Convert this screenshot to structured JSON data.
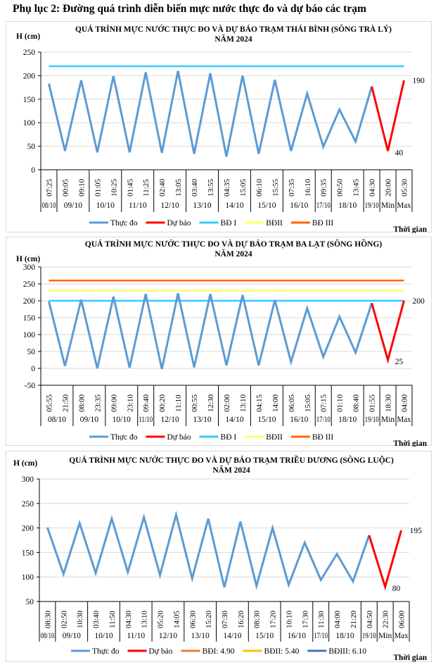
{
  "page_title": "Phụ lục 2: Đường quá trình diễn biến mực nước thực đo và dự báo các trạm",
  "x_axis_label": "Thời gian",
  "chart_data": [
    {
      "type": "line",
      "title": [
        "QUÁ TRÌNH MỰC NƯỚC THỰC ĐO VÀ DỰ BÁO TRẠM THÁI BÌNH (SÔNG TRÀ LÝ)",
        "NĂM 2024"
      ],
      "ylabel": "H (cm)",
      "xlabel": "Thời gian",
      "ylim": [
        0,
        250
      ],
      "yticks": [
        0,
        50,
        100,
        150,
        200,
        250
      ],
      "grid": true,
      "legend_position": "bottom",
      "categories": [
        "07:25",
        "00:05",
        "09:10",
        "01:05",
        "10:25",
        "01:45",
        "11:25",
        "02:40",
        "13:05",
        "03:40",
        "13:55",
        "04:35",
        "15:05",
        "06:10",
        "15:55",
        "07:35",
        "16:10",
        "09:35",
        "00:50",
        "13:45",
        "04:30",
        "20:00",
        "05:30"
      ],
      "date_groups": [
        [
          "08/10",
          1
        ],
        [
          "09/10",
          2
        ],
        [
          "10/10",
          2
        ],
        [
          "11/10",
          2
        ],
        [
          "12/10",
          2
        ],
        [
          "13/10",
          2
        ],
        [
          "14/10",
          2
        ],
        [
          "15/10",
          2
        ],
        [
          "16/10",
          2
        ],
        [
          "17/10",
          1
        ],
        [
          "18/10",
          2
        ],
        [
          "19/10",
          1
        ],
        [
          "Min",
          1
        ],
        [
          "Max",
          1
        ]
      ],
      "series": [
        {
          "name": "Thực đo",
          "color": "#5B9BD5",
          "values": [
            183,
            40,
            190,
            37,
            199,
            37,
            207,
            36,
            210,
            34,
            205,
            28,
            200,
            34,
            191,
            40,
            162,
            49,
            128,
            60,
            177,
            null,
            null
          ]
        },
        {
          "name": "Dự báo",
          "color": "#FF0000",
          "values": [
            null,
            null,
            null,
            null,
            null,
            null,
            null,
            null,
            null,
            null,
            null,
            null,
            null,
            null,
            null,
            null,
            null,
            null,
            null,
            null,
            177,
            40,
            190
          ]
        }
      ],
      "levels": [
        {
          "name": "BĐ I",
          "color": "#33CCFF",
          "value": 220
        },
        {
          "name": "BĐII",
          "color": "#FFFF66",
          "value": null
        },
        {
          "name": "BĐ III",
          "color": "#FF6600",
          "value": null
        }
      ],
      "annotations": [
        {
          "text": "190",
          "index": 22,
          "value": 190
        },
        {
          "text": "40",
          "index": 21,
          "value": 40
        }
      ]
    },
    {
      "type": "line",
      "title": [
        "QUÁ TRÌNH MỰC NƯỚC THỰC ĐO VÀ DỰ BÁO TRẠM BA LẠT (SÔNG HỒNG)",
        "NĂM 2024"
      ],
      "ylabel": "H (cm)",
      "xlabel": "Thời gian",
      "ylim": [
        -50,
        300
      ],
      "yticks": [
        -50,
        0,
        50,
        100,
        150,
        200,
        250,
        300
      ],
      "grid": true,
      "legend_position": "bottom",
      "categories": [
        "05:55",
        "21:50",
        "08:00",
        "23:35",
        "09:00",
        "23:10",
        "09:40",
        "00:20",
        "11:10",
        "00:55",
        "12:30",
        "02:00",
        "13:10",
        "04:15",
        "14:00",
        "06:05",
        "15:05",
        "07:15",
        "01:10",
        "08:40",
        "01:55",
        "18:30",
        "04:00"
      ],
      "date_groups": [
        [
          "08/10",
          2
        ],
        [
          "09/10",
          2
        ],
        [
          "10/10",
          2
        ],
        [
          "11/10",
          1
        ],
        [
          "12/10",
          2
        ],
        [
          "13/10",
          2
        ],
        [
          "14/10",
          2
        ],
        [
          "15/10",
          2
        ],
        [
          "16/10",
          2
        ],
        [
          "17/10",
          1
        ],
        [
          "18/10",
          2
        ],
        [
          "19/10",
          1
        ],
        [
          "Min",
          1
        ],
        [
          "Max",
          1
        ]
      ],
      "series": [
        {
          "name": "Thực đo",
          "color": "#5B9BD5",
          "values": [
            198,
            7,
            203,
            0,
            212,
            2,
            220,
            -2,
            222,
            3,
            220,
            9,
            217,
            9,
            202,
            19,
            178,
            34,
            153,
            47,
            193,
            null,
            null
          ]
        },
        {
          "name": "Dự báo",
          "color": "#FF0000",
          "values": [
            null,
            null,
            null,
            null,
            null,
            null,
            null,
            null,
            null,
            null,
            null,
            null,
            null,
            null,
            null,
            null,
            null,
            null,
            null,
            null,
            193,
            25,
            200
          ]
        }
      ],
      "levels": [
        {
          "name": "BĐ I",
          "color": "#33CCFF",
          "value": 200
        },
        {
          "name": "BĐII",
          "color": "#FFFF66",
          "value": 230
        },
        {
          "name": "BĐ III",
          "color": "#FF6600",
          "value": 260
        }
      ],
      "annotations": [
        {
          "text": "200",
          "index": 22,
          "value": 200
        },
        {
          "text": "25",
          "index": 21,
          "value": 25
        }
      ]
    },
    {
      "type": "line",
      "title": [
        "QUÁ TRÌNH MỰC NƯỚC THỰC ĐO VÀ DỰ BÁO TRẠM TRIỀU DƯƠNG (SÔNG LUỘC)",
        "NĂM 2024"
      ],
      "ylabel": "H (cm)",
      "xlabel": "Thời gian",
      "ylim": [
        50,
        300
      ],
      "yticks": [
        50,
        100,
        150,
        200,
        250,
        300
      ],
      "grid": true,
      "legend_position": "bottom",
      "categories": [
        "08:30",
        "02:50",
        "10:30",
        "03:40",
        "11:50",
        "04:30",
        "13:10",
        "05:20",
        "14:05",
        "06:30",
        "15:20",
        "07:30",
        "16:20",
        "08:30",
        "17:20",
        "10:10",
        "17:30",
        "11:30",
        "04:00",
        "21:20",
        "04:50",
        "22:30",
        "06:00"
      ],
      "date_groups": [
        [
          "08/10",
          1
        ],
        [
          "09/10",
          2
        ],
        [
          "10/10",
          2
        ],
        [
          "11/10",
          2
        ],
        [
          "12/10",
          2
        ],
        [
          "13/10",
          2
        ],
        [
          "14/10",
          2
        ],
        [
          "15/10",
          2
        ],
        [
          "16/10",
          2
        ],
        [
          "17/10",
          1
        ],
        [
          "18/10",
          2
        ],
        [
          "19/10",
          1
        ],
        [
          "Min",
          1
        ],
        [
          "Max",
          1
        ]
      ],
      "series": [
        {
          "name": "Thực đo",
          "color": "#5B9BD5",
          "values": [
            201,
            106,
            210,
            108,
            219,
            110,
            222,
            104,
            227,
            97,
            219,
            79,
            213,
            82,
            200,
            84,
            170,
            94,
            147,
            91,
            185,
            null,
            null
          ]
        },
        {
          "name": "Dự báo",
          "color": "#FF0000",
          "values": [
            null,
            null,
            null,
            null,
            null,
            null,
            null,
            null,
            null,
            null,
            null,
            null,
            null,
            null,
            null,
            null,
            null,
            null,
            null,
            null,
            185,
            80,
            195
          ]
        }
      ],
      "levels": [
        {
          "name": "BĐI: 4.90",
          "color": "#ED7D31",
          "value": null
        },
        {
          "name": "BĐII: 5.40",
          "color": "#FFC000",
          "value": null
        },
        {
          "name": "BĐIII: 6.10",
          "color": "#4472C4",
          "value": null
        }
      ],
      "annotations": [
        {
          "text": "195",
          "index": 22,
          "value": 195
        },
        {
          "text": "80",
          "index": 21,
          "value": 80
        }
      ]
    }
  ]
}
